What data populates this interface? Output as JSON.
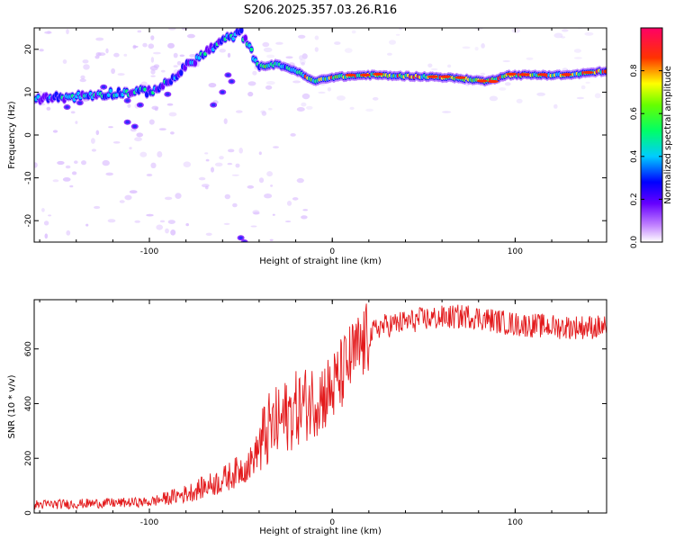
{
  "title": "S206.2025.357.03.26.R16",
  "chart_data": [
    {
      "type": "heatmap",
      "name": "spectrogram",
      "xlabel": "Height of straight line (km)",
      "ylabel": "Frequency (Hz)",
      "xlim": [
        -163,
        150
      ],
      "ylim": [
        -25,
        25
      ],
      "xticks": [
        -100,
        0,
        100
      ],
      "yticks": [
        -20,
        -10,
        0,
        10,
        20
      ],
      "ridge": [
        {
          "x": -163,
          "y": 8.5
        },
        {
          "x": -140,
          "y": 9.0
        },
        {
          "x": -120,
          "y": 9.8
        },
        {
          "x": -100,
          "y": 10.2
        },
        {
          "x": -90,
          "y": 12.0
        },
        {
          "x": -80,
          "y": 16.0
        },
        {
          "x": -70,
          "y": 19.0
        },
        {
          "x": -60,
          "y": 22.0
        },
        {
          "x": -50,
          "y": 24.0
        },
        {
          "x": -40,
          "y": 16.0
        },
        {
          "x": -30,
          "y": 16.5
        },
        {
          "x": -20,
          "y": 15.0
        },
        {
          "x": -10,
          "y": 12.5
        },
        {
          "x": 0,
          "y": 13.5
        },
        {
          "x": 20,
          "y": 14.0
        },
        {
          "x": 60,
          "y": 13.5
        },
        {
          "x": 75,
          "y": 13.0
        },
        {
          "x": 85,
          "y": 12.5
        },
        {
          "x": 95,
          "y": 14.0
        },
        {
          "x": 130,
          "y": 14.0
        },
        {
          "x": 150,
          "y": 15.0
        }
      ],
      "colorbar": {
        "label": "Normalized spectral amplitude",
        "range": [
          0,
          1
        ],
        "ticks": [
          "0.0",
          "0.2",
          "0.4",
          "0.6",
          "0.8"
        ],
        "colors": [
          "#ffffff",
          "#8800ff",
          "#0000ff",
          "#00ffff",
          "#00ff00",
          "#ffff00",
          "#ff0000",
          "#ff0088"
        ]
      }
    },
    {
      "type": "line",
      "name": "snr",
      "xlabel": "Height of straight line (km)",
      "ylabel": "SNR (10 * v/v)",
      "xlim": [
        -163,
        150
      ],
      "ylim": [
        0,
        780
      ],
      "xticks": [
        -100,
        0,
        100
      ],
      "yticks": [
        0,
        200,
        400,
        600
      ],
      "color": "#e31a1c",
      "trend": [
        {
          "x": -163,
          "y": 30
        },
        {
          "x": -100,
          "y": 40
        },
        {
          "x": -80,
          "y": 70
        },
        {
          "x": -60,
          "y": 120
        },
        {
          "x": -45,
          "y": 180
        },
        {
          "x": -35,
          "y": 300
        },
        {
          "x": -20,
          "y": 380
        },
        {
          "x": 0,
          "y": 450
        },
        {
          "x": 10,
          "y": 560
        },
        {
          "x": 25,
          "y": 680
        },
        {
          "x": 50,
          "y": 710
        },
        {
          "x": 75,
          "y": 720
        },
        {
          "x": 100,
          "y": 690
        },
        {
          "x": 125,
          "y": 680
        },
        {
          "x": 150,
          "y": 680
        }
      ]
    }
  ]
}
